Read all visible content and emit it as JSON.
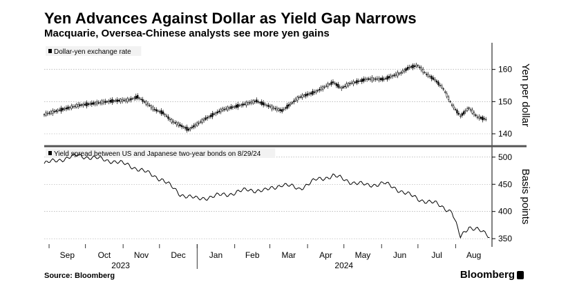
{
  "header": {
    "title": "Yen Advances Against Dollar as Yield Gap Narrows",
    "subtitle": "Macquarie, Oversea-Chinese analysts see more yen gains"
  },
  "footer": {
    "source": "Source: Bloomberg",
    "brand": "Bloomberg"
  },
  "chart_data": [
    {
      "type": "candlestick",
      "legend": "Dollar-yen exchange rate",
      "ylabel": "Yen per dollar",
      "yticks": [
        140,
        150,
        160
      ],
      "ylim": [
        137,
        167
      ],
      "xlim": [
        "2023-08-28",
        "2024-08-31"
      ],
      "grid": true,
      "series": [
        {
          "name": "Dollar-yen exchange rate",
          "x": [
            "2023-08-28",
            "2023-09-11",
            "2023-09-25",
            "2023-10-09",
            "2023-10-23",
            "2023-11-06",
            "2023-11-13",
            "2023-11-20",
            "2023-11-27",
            "2023-12-04",
            "2023-12-11",
            "2023-12-25",
            "2024-01-08",
            "2024-01-22",
            "2024-02-05",
            "2024-02-19",
            "2024-03-04",
            "2024-03-11",
            "2024-03-25",
            "2024-04-08",
            "2024-04-22",
            "2024-04-29",
            "2024-05-06",
            "2024-05-20",
            "2024-06-03",
            "2024-06-17",
            "2024-06-24",
            "2024-07-01",
            "2024-07-08",
            "2024-07-15",
            "2024-07-22",
            "2024-07-29",
            "2024-08-05",
            "2024-08-12",
            "2024-08-19",
            "2024-08-26"
          ],
          "y": [
            146.0,
            147.5,
            148.8,
            149.5,
            150.2,
            150.5,
            151.5,
            149.6,
            147.5,
            146.5,
            144.0,
            141.3,
            144.7,
            147.5,
            148.8,
            150.2,
            148.0,
            147.2,
            151.3,
            153.1,
            156.0,
            154.2,
            155.6,
            157.0,
            157.0,
            158.9,
            160.7,
            161.2,
            158.5,
            156.8,
            154.0,
            149.0,
            145.5,
            148.0,
            145.2,
            144.5
          ]
        }
      ]
    },
    {
      "type": "line",
      "legend": "Yield spread between US and Japanese two-year bonds on 8/29/24",
      "ylabel": "Basis points",
      "yticks": [
        350,
        400,
        450,
        500
      ],
      "ylim": [
        340,
        515
      ],
      "xlim": [
        "2023-08-28",
        "2024-08-31"
      ],
      "grid": true,
      "series": [
        {
          "name": "Yield spread between US and Japanese two-year bonds on 8/29/24",
          "x": [
            "2023-08-28",
            "2023-09-11",
            "2023-09-25",
            "2023-10-09",
            "2023-10-23",
            "2023-11-06",
            "2023-11-20",
            "2023-12-04",
            "2023-12-18",
            "2024-01-01",
            "2024-01-15",
            "2024-01-29",
            "2024-02-12",
            "2024-02-26",
            "2024-03-11",
            "2024-03-25",
            "2024-04-08",
            "2024-04-22",
            "2024-05-06",
            "2024-05-20",
            "2024-06-03",
            "2024-06-17",
            "2024-07-01",
            "2024-07-15",
            "2024-07-29",
            "2024-08-05",
            "2024-08-12",
            "2024-08-19",
            "2024-08-29"
          ],
          "y": [
            488,
            496,
            503,
            498,
            493,
            485,
            472,
            458,
            432,
            423,
            428,
            433,
            440,
            438,
            450,
            442,
            458,
            466,
            455,
            448,
            452,
            438,
            423,
            415,
            400,
            352,
            372,
            368,
            352
          ]
        }
      ]
    }
  ],
  "x_axis": {
    "months": [
      "Sep",
      "Oct",
      "Nov",
      "Dec",
      "Jan",
      "Feb",
      "Mar",
      "Apr",
      "May",
      "Jun",
      "Jul",
      "Aug"
    ],
    "years": [
      "2023",
      "2024"
    ]
  }
}
